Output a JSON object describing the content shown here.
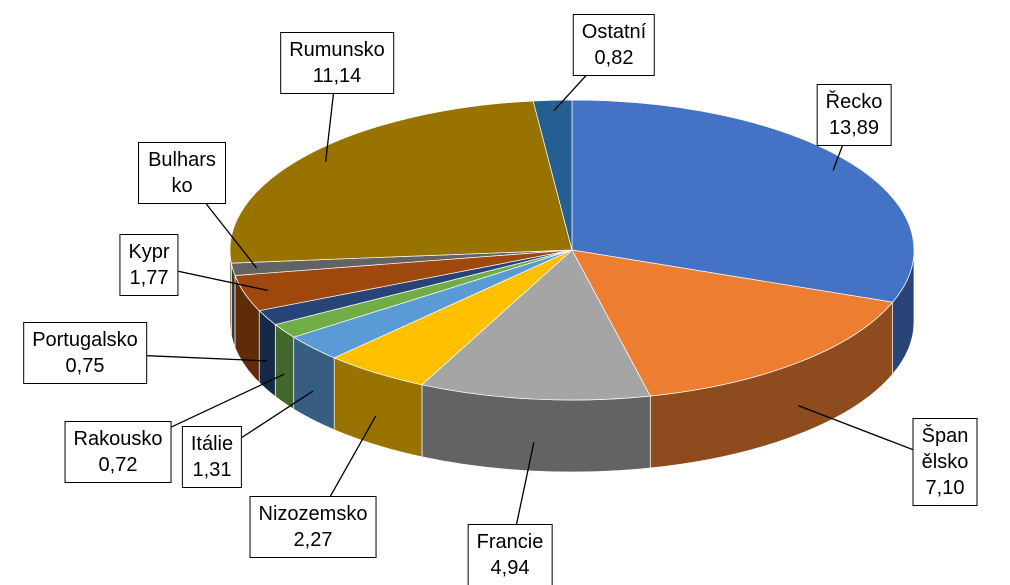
{
  "chart_data": {
    "type": "pie3d",
    "categories": [
      "Řecko",
      "Španělsko",
      "Francie",
      "Nizozemsko",
      "Itálie",
      "Rakousko",
      "Portugalsko",
      "Kypr",
      "Bulharsko",
      "Rumunsko",
      "Ostatní"
    ],
    "values": [
      13.89,
      7.1,
      4.94,
      2.27,
      1.31,
      0.72,
      0.75,
      1.77,
      0.6,
      11.14,
      0.82
    ],
    "value_labels": [
      "13,89",
      "7,10",
      "4,94",
      "2,27",
      "1,31",
      "0,72",
      "0,75",
      "1,77",
      null,
      "11,14",
      "0,82"
    ],
    "colors": [
      "#4472c4",
      "#ed7d31",
      "#a5a5a5",
      "#ffc000",
      "#5b9bd5",
      "#70ad47",
      "#264478",
      "#9e480e",
      "#636363",
      "#997300",
      "#255e91"
    ]
  }
}
